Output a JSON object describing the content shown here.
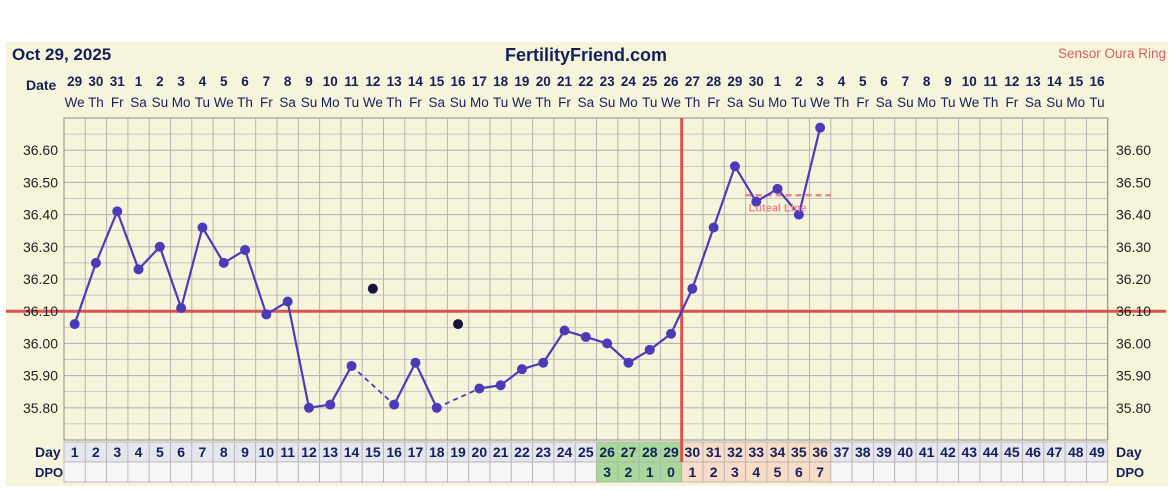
{
  "header": {
    "date": "Oct 29, 2025",
    "site": "FertilityFriend.com",
    "sensor": "Sensor Oura Ring"
  },
  "row_labels": {
    "date": "Date",
    "day": "Day",
    "dpo": "DPO"
  },
  "colors": {
    "panel": "#f7f4dc",
    "grid": "#b4b4b4",
    "series": "#4b3bb8",
    "coverline": "#d9534f",
    "ovulation": "#d9534f",
    "luteal": "#e88a8a",
    "header_text": "#13205a",
    "sensor_text": "#d46060",
    "dpo_green": "#a9d89a",
    "dpo_peach": "#f7dcc8",
    "day_gray": "#e6e6ee"
  },
  "chart_data": {
    "type": "line",
    "title": "FertilityFriend.com",
    "ylim": [
      35.7,
      36.7
    ],
    "y_ticks": [
      "35.80",
      "35.90",
      "36.00",
      "36.10",
      "36.20",
      "36.30",
      "36.40",
      "36.50",
      "36.60"
    ],
    "dates": [
      "29",
      "30",
      "31",
      "1",
      "2",
      "3",
      "4",
      "5",
      "6",
      "7",
      "8",
      "9",
      "10",
      "11",
      "12",
      "13",
      "14",
      "15",
      "16",
      "17",
      "18",
      "19",
      "20",
      "21",
      "22",
      "23",
      "24",
      "25",
      "26",
      "27",
      "28",
      "29",
      "30",
      "1",
      "2",
      "3",
      "4",
      "5",
      "6",
      "7",
      "8",
      "9",
      "10",
      "11",
      "12",
      "13",
      "14",
      "15",
      "16"
    ],
    "weekdays": [
      "We",
      "Th",
      "Fr",
      "Sa",
      "Su",
      "Mo",
      "Tu",
      "We",
      "Th",
      "Fr",
      "Sa",
      "Su",
      "Mo",
      "Tu",
      "We",
      "Th",
      "Fr",
      "Sa",
      "Su",
      "Mo",
      "Tu",
      "We",
      "Th",
      "Fr",
      "Sa",
      "Su",
      "Mo",
      "Tu",
      "We",
      "Th",
      "Fr",
      "Sa",
      "Su",
      "Mo",
      "Tu",
      "We",
      "Th",
      "Fr",
      "Sa",
      "Su",
      "Mo",
      "Tu",
      "We",
      "Th",
      "Fr",
      "Sa",
      "Su",
      "Mo",
      "Tu"
    ],
    "cycle_days": [
      "1",
      "2",
      "3",
      "4",
      "5",
      "6",
      "7",
      "8",
      "9",
      "10",
      "11",
      "12",
      "13",
      "14",
      "15",
      "16",
      "17",
      "18",
      "19",
      "20",
      "21",
      "22",
      "23",
      "24",
      "25",
      "26",
      "27",
      "28",
      "29",
      "30",
      "31",
      "32",
      "33",
      "34",
      "35",
      "36",
      "37",
      "38",
      "39",
      "40",
      "41",
      "42",
      "43",
      "44",
      "45",
      "46",
      "47",
      "48",
      "49"
    ],
    "dpo": [
      "",
      "",
      "",
      "",
      "",
      "",
      "",
      "",
      "",
      "",
      "",
      "",
      "",
      "",
      "",
      "",
      "",
      "",
      "",
      "",
      "",
      "",
      "",
      "",
      "",
      "3",
      "2",
      "1",
      "0",
      "1",
      "2",
      "3",
      "4",
      "5",
      "6",
      "7",
      "",
      "",
      "",
      "",
      "",
      "",
      "",
      "",
      "",
      "",
      "",
      "",
      ""
    ],
    "series": [
      {
        "temps": [
          36.06,
          36.25,
          36.41,
          36.23,
          36.3,
          36.11,
          36.36,
          36.25,
          36.29,
          36.09,
          36.13,
          35.8,
          35.81,
          35.93,
          null,
          35.81,
          35.94,
          35.8,
          null,
          35.86,
          35.87,
          35.92,
          35.94,
          36.04,
          36.02,
          36.0,
          35.94,
          35.98,
          36.03,
          36.17,
          36.36,
          36.55,
          36.44,
          36.48,
          36.4,
          36.67
        ]
      }
    ],
    "dashed_segments": [
      [
        14,
        16
      ],
      [
        18,
        20
      ]
    ],
    "discarded_points": [
      {
        "day": 15,
        "temp": 36.17
      },
      {
        "day": 19,
        "temp": 36.06
      }
    ],
    "coverline": 36.1,
    "ovulation_day": 29,
    "luteal_line": {
      "label": "Luteal Line",
      "temp": 36.46,
      "from_day": 33,
      "to_day": 36
    }
  }
}
